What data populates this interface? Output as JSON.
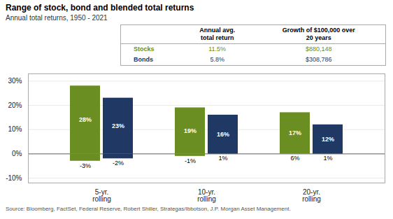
{
  "chart_data": {
    "type": "bar",
    "title": "Range of stock, bond and blended total returns",
    "subtitle": "Annual total returns, 1950 - 2021",
    "source": "Source: Bloomberg, FactSet, Federal Reserve, Robert Shiller, Strategas/Ibbotson, J.P. Morgan Asset Management.",
    "categories": [
      "5-yr.\nrolling",
      "10-yr.\nrolling",
      "20-yr.\nrolling"
    ],
    "series": [
      {
        "name": "Stocks",
        "color": "#6b8e23",
        "high": [
          28,
          19,
          17
        ],
        "high_labels": [
          "28%",
          "19%",
          "17%"
        ],
        "low": [
          -3,
          -1,
          6
        ],
        "low_labels": [
          "-3%",
          "-1%",
          "6%"
        ]
      },
      {
        "name": "Bonds",
        "color": "#1f3864",
        "high": [
          23,
          16,
          12
        ],
        "high_labels": [
          "23%",
          "16%",
          "12%"
        ],
        "low": [
          -2,
          1,
          1
        ],
        "low_labels": [
          "-2%",
          "1%",
          "1%"
        ]
      }
    ],
    "ylim": [
      -12,
      33
    ],
    "yticks": [
      {
        "value": -10,
        "label": "-10%"
      },
      {
        "value": 0,
        "label": "0%"
      },
      {
        "value": 10,
        "label": "10%"
      },
      {
        "value": 20,
        "label": "20%"
      },
      {
        "value": 30,
        "label": "30%"
      }
    ],
    "grid": true,
    "data_labels": true,
    "table": {
      "col_headers": [
        "Annual avg.\ntotal return",
        "Growth of $100,000 over\n20 years"
      ],
      "rows": [
        {
          "label": "Stocks",
          "color": "#6b8e23",
          "values": [
            "11.5%",
            "$880,148"
          ]
        },
        {
          "label": "Bonds",
          "color": "#1f3864",
          "values": [
            "5.8%",
            "$308,786"
          ]
        }
      ]
    }
  }
}
